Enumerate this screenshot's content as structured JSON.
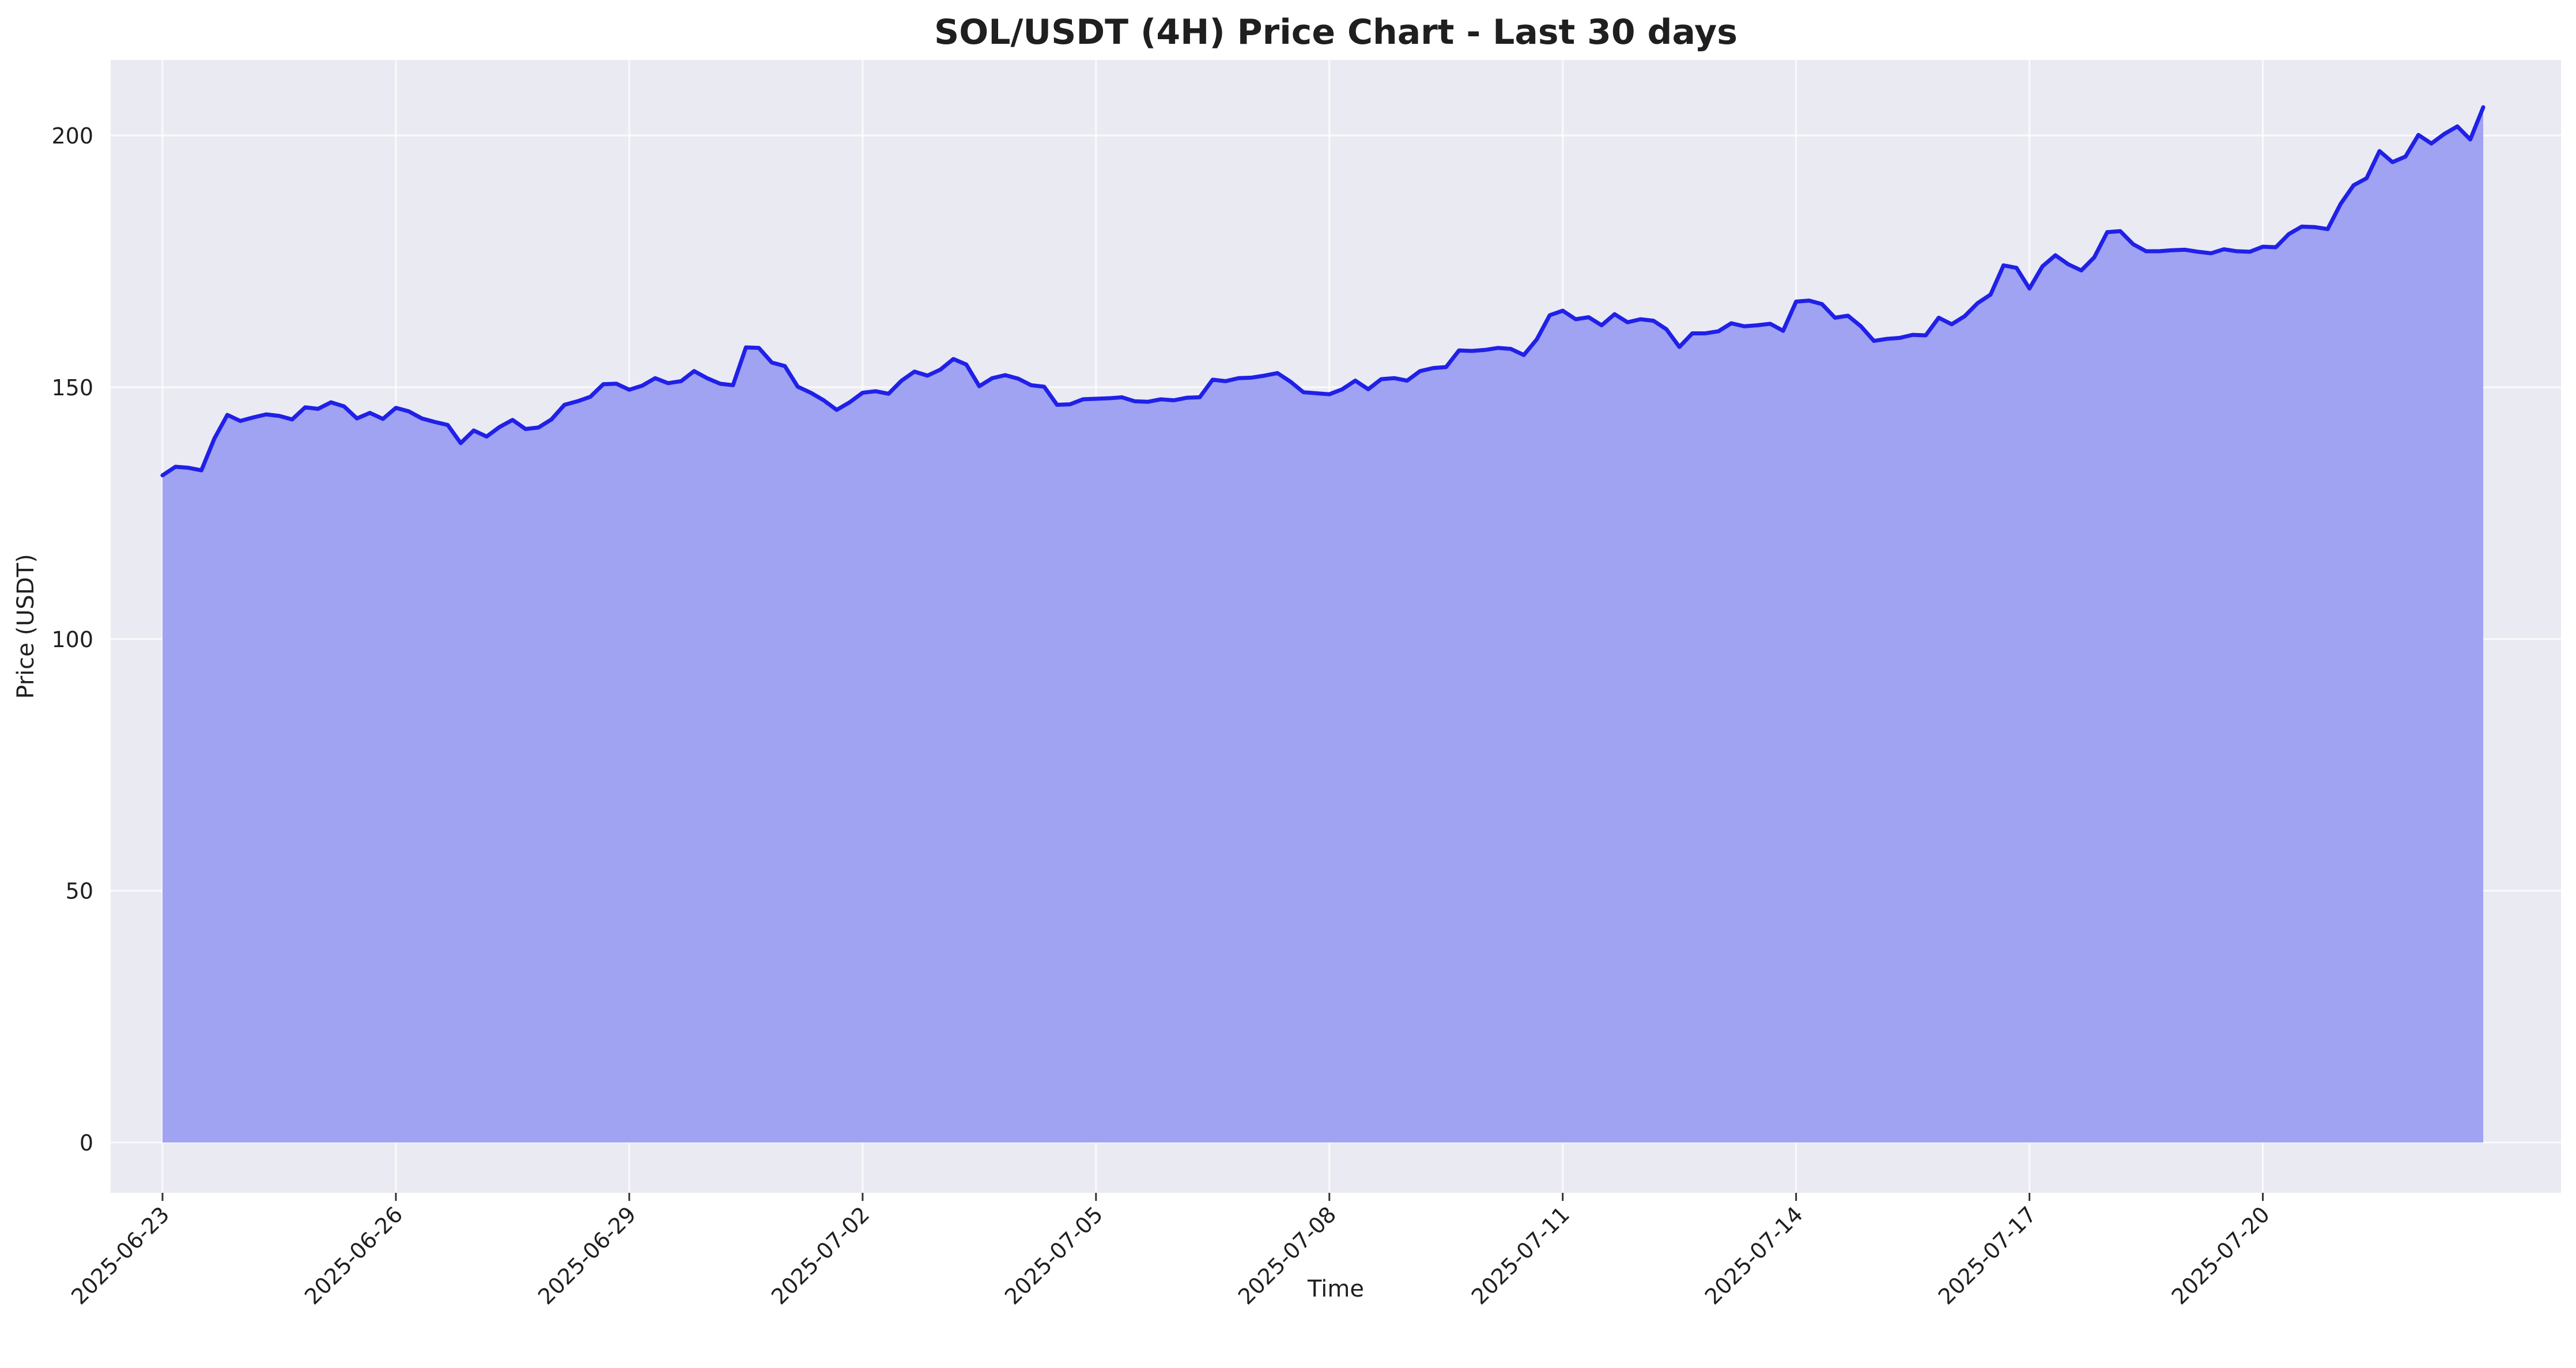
{
  "chart_data": {
    "type": "area",
    "title": "SOL/USDT (4H) Price Chart - Last 30 days",
    "xlabel": "Time",
    "ylabel": "Price (USDT)",
    "ylim": [
      -10,
      215
    ],
    "xlim": [
      "2025-06-22T08:00",
      "2025-07-23T20:00"
    ],
    "y_ticks": [
      0,
      50,
      100,
      150,
      200
    ],
    "x_ticks": [
      "2025-06-23",
      "2025-06-26",
      "2025-06-29",
      "2025-07-02",
      "2025-07-05",
      "2025-07-08",
      "2025-07-11",
      "2025-07-14",
      "2025-07-17",
      "2025-07-20"
    ],
    "grid": true,
    "start": "2025-06-23T00:00",
    "interval_hours": 4,
    "series": [
      {
        "name": "SOL/USDT",
        "color": "#2020e8",
        "fill_color": "#a0a2f2",
        "values": [
          132.5,
          134.2,
          134.0,
          133.5,
          139.8,
          144.5,
          143.3,
          144.0,
          144.6,
          144.3,
          143.6,
          146.0,
          145.7,
          147.0,
          146.2,
          143.8,
          144.9,
          143.7,
          145.9,
          145.2,
          143.8,
          143.1,
          142.5,
          138.9,
          141.4,
          140.2,
          142.1,
          143.5,
          141.7,
          142.0,
          143.6,
          146.5,
          147.2,
          148.1,
          150.6,
          150.7,
          149.5,
          150.3,
          151.8,
          150.8,
          151.2,
          153.2,
          151.8,
          150.7,
          150.4,
          157.9,
          157.8,
          154.9,
          154.2,
          150.1,
          148.9,
          147.4,
          145.5,
          147.0,
          148.9,
          149.2,
          148.7,
          151.3,
          153.1,
          152.3,
          153.5,
          155.6,
          154.5,
          150.2,
          151.8,
          152.4,
          151.7,
          150.4,
          150.1,
          146.5,
          146.6,
          147.6,
          147.7,
          147.8,
          148.0,
          147.2,
          147.1,
          147.6,
          147.4,
          147.9,
          148.0,
          151.5,
          151.2,
          151.8,
          151.9,
          152.3,
          152.8,
          151.1,
          149.0,
          148.8,
          148.6,
          149.6,
          151.3,
          149.6,
          151.6,
          151.8,
          151.3,
          153.2,
          153.8,
          154.0,
          157.3,
          157.2,
          157.4,
          157.8,
          157.6,
          156.4,
          159.5,
          164.3,
          165.2,
          163.5,
          163.9,
          162.3,
          164.5,
          162.9,
          163.5,
          163.2,
          161.5,
          158.0,
          160.7,
          160.7,
          161.1,
          162.7,
          162.1,
          162.3,
          162.6,
          161.2,
          167.0,
          167.2,
          166.5,
          163.8,
          164.2,
          162.1,
          159.2,
          159.6,
          159.8,
          160.4,
          160.3,
          163.8,
          162.5,
          164.1,
          166.7,
          168.4,
          174.2,
          173.7,
          169.6,
          174.0,
          176.2,
          174.4,
          173.2,
          175.8,
          180.8,
          181.0,
          178.4,
          177.0,
          177.0,
          177.2,
          177.3,
          176.9,
          176.6,
          177.4,
          177.0,
          176.9,
          177.9,
          177.8,
          180.4,
          181.9,
          181.8,
          181.4,
          186.4,
          190.1,
          191.5,
          196.9,
          194.7,
          195.8,
          200.1,
          198.4,
          200.3,
          201.8,
          199.2,
          205.6
        ]
      }
    ]
  }
}
